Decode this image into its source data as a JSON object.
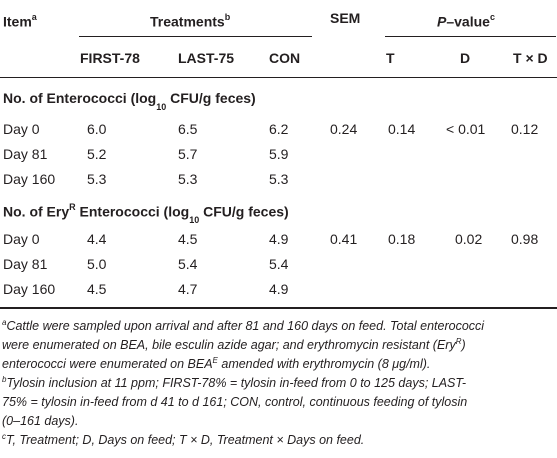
{
  "header": {
    "item": "Item",
    "item_sup": "a",
    "treatments": "Treatments",
    "treatments_sup": "b",
    "sem": "SEM",
    "pvalue_prefix": "P",
    "pvalue_suffix": "–value",
    "pvalue_sup": "c",
    "cols": [
      "FIRST-78",
      "LAST-75",
      "CON",
      "T",
      "D",
      "T × D"
    ]
  },
  "sections": [
    {
      "title_pre": "No. of Enterococci (log",
      "title_sub": "10",
      "title_post": " CFU/g feces)",
      "rows": [
        {
          "day": "Day 0",
          "first78": "6.0",
          "last75": "6.5",
          "con": "6.2",
          "sem": "0.24",
          "t": "0.14",
          "d": "< 0.01",
          "txd": "0.12"
        },
        {
          "day": "Day 81",
          "first78": "5.2",
          "last75": "5.7",
          "con": "5.9",
          "sem": "",
          "t": "",
          "d": "",
          "txd": ""
        },
        {
          "day": "Day 160",
          "first78": "5.3",
          "last75": "5.3",
          "con": "5.3",
          "sem": "",
          "t": "",
          "d": "",
          "txd": ""
        }
      ]
    },
    {
      "title_pre": "No. of Ery",
      "title_sup": "R",
      "title_mid": " Enterococci (log",
      "title_sub": "10",
      "title_post": " CFU/g feces)",
      "rows": [
        {
          "day": "Day 0",
          "first78": "4.4",
          "last75": "4.5",
          "con": "4.9",
          "sem": "0.41",
          "t": "0.18",
          "d": "0.02",
          "txd": "0.98"
        },
        {
          "day": "Day 81",
          "first78": "5.0",
          "last75": "5.4",
          "con": "5.4",
          "sem": "",
          "t": "",
          "d": "",
          "txd": ""
        },
        {
          "day": "Day 160",
          "first78": "4.5",
          "last75": "4.7",
          "con": "4.9",
          "sem": "",
          "t": "",
          "d": "",
          "txd": ""
        }
      ]
    }
  ],
  "footnotes": {
    "a_mark": "a",
    "a_l1": "Cattle were sampled upon arrival and after 81 and 160 days on feed. Total enterococci",
    "a_l2_pre": "were enumerated on BEA, bile esculin azide agar; and erythromycin resistant (Ery",
    "a_l2_sup": "R",
    "a_l2_post": ")",
    "a_l3_pre": "enterococci were enumerated on BEA",
    "a_l3_sup": "E",
    "a_l3_post": " amended with erythromycin (8 μg/ml).",
    "b_mark": "b",
    "b_l1": "Tylosin inclusion at 11 ppm; FIRST-78% = tylosin in-feed from 0 to 125 days; LAST-",
    "b_l2": "75% = tylosin in-feed from d 41 to d 161; CON, control, continuous feeding of tylosin",
    "b_l3": "(0–161 days).",
    "c_mark": "c",
    "c_l1": "T, Treatment; D, Days on feed; T × D, Treatment × Days on feed."
  }
}
